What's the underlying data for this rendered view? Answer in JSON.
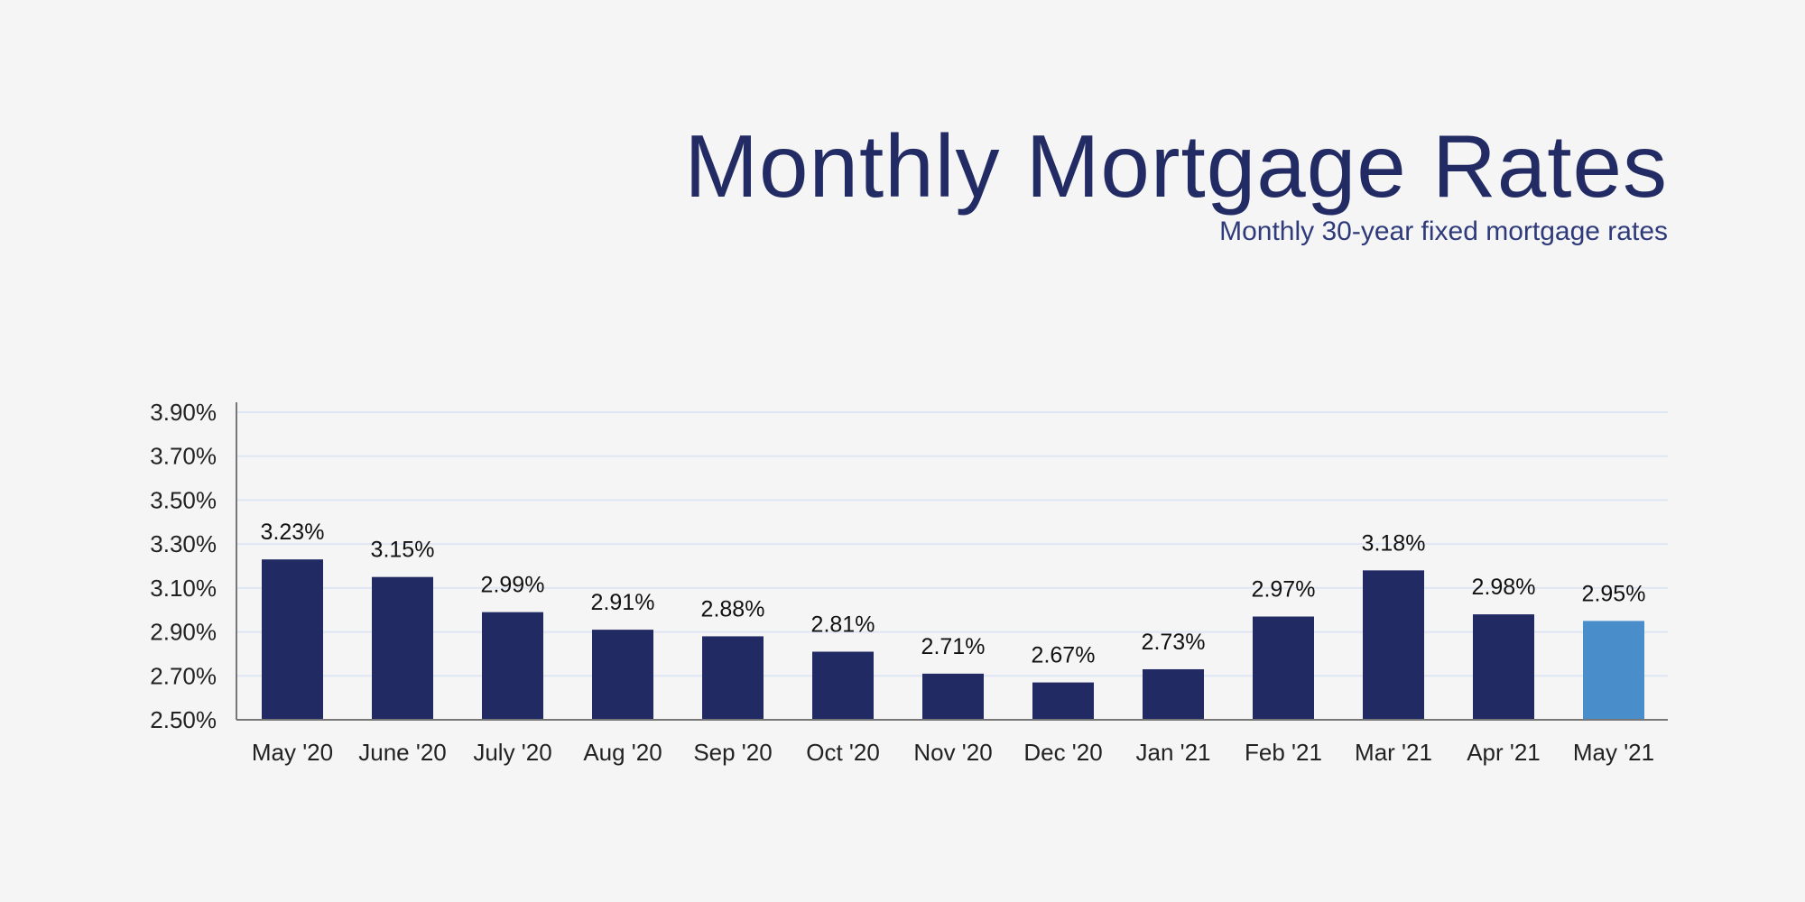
{
  "title": "Monthly Mortgage Rates",
  "subtitle": "Monthly 30-year fixed mortgage rates",
  "colors": {
    "bar": "#222a63",
    "highlight": "#4a8dcb",
    "grid": "#dfe6f3",
    "title": "#222b63"
  },
  "chart_data": {
    "type": "bar",
    "title": "Monthly Mortgage Rates",
    "subtitle": "Monthly 30-year fixed mortgage rates",
    "categories": [
      "May '20",
      "June '20",
      "July '20",
      "Aug '20",
      "Sep '20",
      "Oct '20",
      "Nov '20",
      "Dec '20",
      "Jan '21",
      "Feb '21",
      "Mar '21",
      "Apr '21",
      "May '21"
    ],
    "values": [
      3.23,
      3.15,
      2.99,
      2.91,
      2.88,
      2.81,
      2.71,
      2.67,
      2.73,
      2.97,
      3.18,
      2.98,
      2.95
    ],
    "data_labels": [
      "3.23%",
      "3.15%",
      "2.99%",
      "2.91%",
      "2.88%",
      "2.81%",
      "2.71%",
      "2.67%",
      "2.73%",
      "2.97%",
      "3.18%",
      "2.98%",
      "2.95%"
    ],
    "highlighted_category": "May '21",
    "ylim": [
      2.5,
      3.9
    ],
    "yticks": [
      "2.50%",
      "2.70%",
      "2.90%",
      "3.10%",
      "3.30%",
      "3.50%",
      "3.70%",
      "3.90%"
    ],
    "ytick_values": [
      2.5,
      2.7,
      2.9,
      3.1,
      3.3,
      3.5,
      3.7,
      3.9
    ],
    "grid": true,
    "xlabel": "",
    "ylabel": ""
  }
}
